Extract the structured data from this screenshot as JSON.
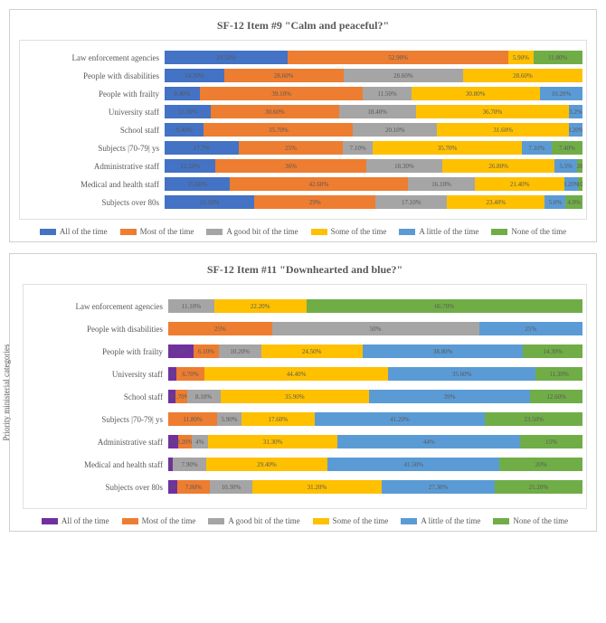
{
  "colors": {
    "all": "#4472c4",
    "most": "#ed7d31",
    "good": "#a5a5a5",
    "some": "#ffc000",
    "little": "#5b9bd5",
    "none": "#70ad47",
    "purple": "#7030a0",
    "text": "#595959",
    "border": "#d0d0d0",
    "plot_border": "#e0e0e0",
    "bg": "#ffffff"
  },
  "legend6": [
    "All of the time",
    "Most of the time",
    "A good bit of the time",
    "Some of the time",
    "A little of the time",
    "None of the time"
  ],
  "chart1": {
    "title": "SF-12 Item #9 \"Calm and peaceful?\"",
    "categories": [
      "Law enforcement agencies",
      "People with disabilities",
      "People with frailty",
      "University staff",
      "School staff",
      "Subjects |70-79| ys",
      "Administrative staff",
      "Medical and health staff",
      "Subjects over 80s"
    ],
    "series_keys": [
      "all",
      "most",
      "good",
      "some",
      "little",
      "none"
    ],
    "data": [
      {
        "all": 29.5,
        "most": 52.9,
        "good": 0,
        "some": 5.9,
        "little": 0,
        "none": 11.8,
        "labels": {
          "all": "29.50%",
          "most": "52.90%",
          "some": "5.90%",
          "none": "11.80%"
        }
      },
      {
        "all": 14.2,
        "most": 28.6,
        "good": 28.6,
        "some": 28.6,
        "little": 0,
        "none": 0,
        "labels": {
          "all": "14.20%",
          "most": "28.60%",
          "good": "28.60%",
          "some": "28.60%"
        }
      },
      {
        "all": 8.4,
        "most": 39.1,
        "good": 11.5,
        "some": 30.8,
        "little": 10.2,
        "none": 0,
        "labels": {
          "all": "8.40%",
          "most": "39.10%",
          "good": "11.50%",
          "some": "30.80%",
          "little": "10.20%"
        }
      },
      {
        "all": 11.1,
        "most": 30.6,
        "good": 18.4,
        "some": 36.7,
        "little": 3.2,
        "none": 0,
        "labels": {
          "all": "11.10%",
          "most": "30.60%",
          "good": "18.40%",
          "some": "36.70%",
          "little": "3.2%"
        }
      },
      {
        "all": 9.4,
        "most": 35.7,
        "good": 20.1,
        "some": 31.6,
        "little": 3.2,
        "none": 0,
        "labels": {
          "all": "9.40%",
          "most": "35.70%",
          "good": "20.10%",
          "some": "31.60%",
          "little": "3.20%"
        }
      },
      {
        "all": 17.7,
        "most": 25.0,
        "good": 7.1,
        "some": 35.7,
        "little": 7.1,
        "none": 7.4,
        "labels": {
          "all": "17.7%",
          "most": "25%",
          "good": "7.10%",
          "some": "35.70%",
          "little": "7.10%",
          "none": "7.40%"
        }
      },
      {
        "all": 12.2,
        "most": 36.0,
        "good": 18.3,
        "some": 26.8,
        "little": 5.5,
        "none": 1.2,
        "labels": {
          "all": "12.20%",
          "most": "36%",
          "good": "18.30%",
          "some": "26.80%",
          "little": "5.5%",
          "none": "1.20%"
        }
      },
      {
        "all": 15.6,
        "most": 42.6,
        "good": 16.1,
        "some": 21.4,
        "little": 3.2,
        "none": 1.1,
        "labels": {
          "all": "15.60%",
          "most": "42.60%",
          "good": "16.10%",
          "some": "21.40%",
          "little": "3.20%",
          "none": "1.10%"
        }
      },
      {
        "all": 21.5,
        "most": 29.0,
        "good": 17.1,
        "some": 23.4,
        "little": 5.0,
        "none": 4.0,
        "labels": {
          "all": "21.50%",
          "most": "29%",
          "good": "17.10%",
          "some": "23.40%",
          "little": "5.0%",
          "none": "4.0%"
        }
      }
    ]
  },
  "chart2": {
    "title": "SF-12 Item #11 \"Downhearted and blue?\"",
    "y_axis_label": "Priority ministerial categories",
    "categories": [
      "Law enforcement agencies",
      "People with disabilities",
      "People with frailty",
      "University staff",
      "School staff",
      "Subjects |70-79| ys",
      "Administrative staff",
      "Medical and health staff",
      "Subjects over 80s"
    ],
    "series_keys": [
      "purple",
      "most",
      "good",
      "some",
      "little",
      "none"
    ],
    "data": [
      {
        "purple": 0,
        "most": 0,
        "good": 11.1,
        "some": 22.2,
        "little": 0,
        "none": 66.7,
        "labels": {
          "good": "11.10%",
          "some": "22.20%",
          "none": "66.70%"
        }
      },
      {
        "purple": 0,
        "most": 25.0,
        "good": 50.0,
        "some": 0,
        "little": 25.0,
        "none": 0,
        "labels": {
          "most": "25%",
          "good": "50%",
          "little": "25%"
        }
      },
      {
        "purple": 6.1,
        "most": 6.1,
        "good": 10.2,
        "some": 24.5,
        "little": 38.8,
        "none": 14.3,
        "labels": {
          "purple": "6.10%",
          "most": "6.10%",
          "good": "10.20%",
          "some": "24.50%",
          "little": "38.80%",
          "none": "14.30%"
        }
      },
      {
        "purple": 2.0,
        "most": 6.7,
        "good": 0,
        "some": 44.4,
        "little": 35.6,
        "none": 11.3,
        "labels": {
          "purple": "2.0%",
          "most": "6.70%",
          "some": "44.40%",
          "little": "35.60%",
          "none": "11.30%"
        }
      },
      {
        "purple": 1.8,
        "most": 2.7,
        "good": 8.1,
        "some": 35.9,
        "little": 39.0,
        "none": 12.6,
        "labels": {
          "purple": "1.8%",
          "most": "2.70%",
          "good": "8.10%",
          "some": "35.90%",
          "little": "39%",
          "none": "12.60%"
        }
      },
      {
        "purple": 0,
        "most": 11.8,
        "good": 5.9,
        "some": 17.6,
        "little": 41.2,
        "none": 23.5,
        "labels": {
          "most": "11.80%",
          "good": "5.90%",
          "some": "17.60%",
          "little": "41.20%",
          "none": "23.50%"
        }
      },
      {
        "purple": 2.4,
        "most": 3.2,
        "good": 4.0,
        "some": 31.3,
        "little": 44.0,
        "none": 15.0,
        "labels": {
          "purple": "2.4%",
          "most": "3.20%",
          "good": "4%",
          "some": "31.30%",
          "little": "44%",
          "none": "15%"
        }
      },
      {
        "purple": 1.2,
        "most": 0,
        "good": 7.9,
        "some": 29.4,
        "little": 41.5,
        "none": 20.0,
        "labels": {
          "purple": "1.20%",
          "good": "7.90%",
          "some": "29.40%",
          "little": "41.50%",
          "none": "20%"
        }
      },
      {
        "purple": 2.2,
        "most": 7.8,
        "good": 10.3,
        "some": 31.2,
        "little": 27.3,
        "none": 21.2,
        "labels": {
          "purple": "2.20%",
          "most": "7.80%",
          "good": "10.30%",
          "some": "31.20%",
          "little": "27.30%",
          "none": "21.20%"
        }
      }
    ]
  }
}
